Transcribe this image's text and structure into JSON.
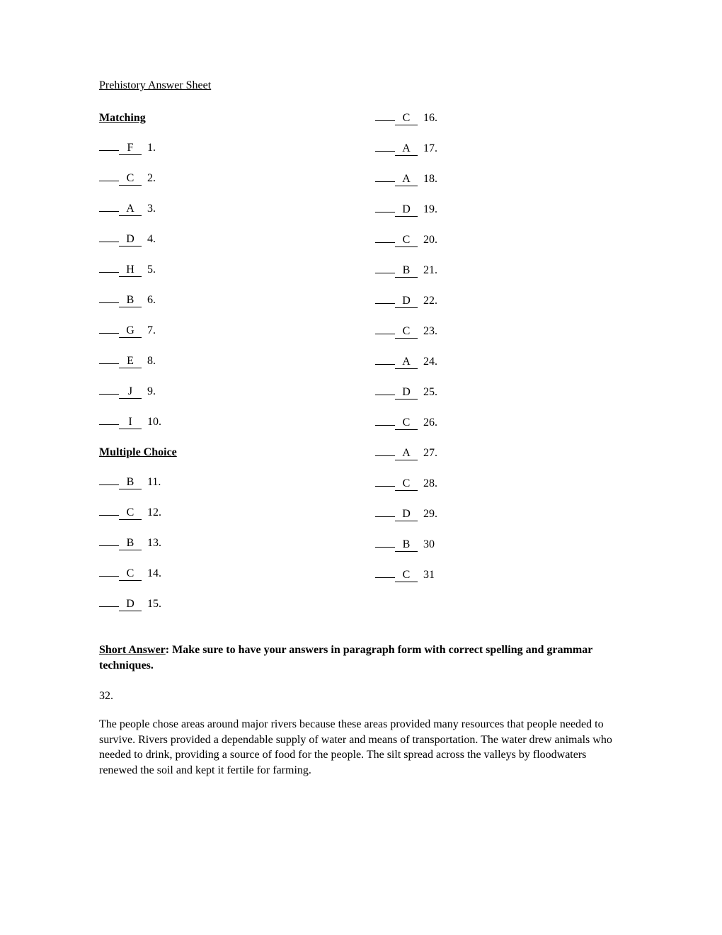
{
  "title": "Prehistory Answer Sheet",
  "sections": {
    "matching": {
      "heading": "Matching",
      "items": [
        {
          "letter": "F",
          "num": "1."
        },
        {
          "letter": "C",
          "num": "2."
        },
        {
          "letter": "A",
          "num": "3."
        },
        {
          "letter": "D",
          "num": "4."
        },
        {
          "letter": "H",
          "num": "5."
        },
        {
          "letter": "B",
          "num": "6."
        },
        {
          "letter": "G",
          "num": "7."
        },
        {
          "letter": "E",
          "num": "8."
        },
        {
          "letter": "J",
          "num": "9."
        },
        {
          "letter": "I",
          "num": "10."
        }
      ]
    },
    "multiple_choice": {
      "heading": "Multiple Choice",
      "left_items": [
        {
          "letter": "B",
          "num": "11."
        },
        {
          "letter": "C",
          "num": "12."
        },
        {
          "letter": "B",
          "num": "13."
        },
        {
          "letter": "C",
          "num": "14."
        },
        {
          "letter": "D",
          "num": "15."
        }
      ],
      "right_items": [
        {
          "letter": "C",
          "num": "16."
        },
        {
          "letter": "A",
          "num": "17."
        },
        {
          "letter": "A",
          "num": "18."
        },
        {
          "letter": "D",
          "num": "19."
        },
        {
          "letter": "C",
          "num": "20."
        },
        {
          "letter": "B",
          "num": "21."
        },
        {
          "letter": "D",
          "num": "22."
        },
        {
          "letter": "C",
          "num": "23."
        },
        {
          "letter": "A",
          "num": "24."
        },
        {
          "letter": "D",
          "num": "25."
        },
        {
          "letter": "C",
          "num": "26."
        },
        {
          "letter": "A",
          "num": "27."
        },
        {
          "letter": "C",
          "num": "28."
        },
        {
          "letter": "D",
          "num": "29."
        },
        {
          "letter": "B",
          "num": "30"
        },
        {
          "letter": "C",
          "num": "31"
        }
      ]
    },
    "short_answer": {
      "label": "Short Answer",
      "instructions": ":  Make sure to have your answers in paragraph form with correct spelling and grammar techniques.",
      "question_number": "32.",
      "paragraph": "The people chose areas around major rivers because these areas provided many resources that people needed to survive. Rivers provided a dependable supply of water and means of transportation. The water drew animals who needed to drink, providing a source of food for the people. The silt spread across the valleys by floodwaters renewed the soil and kept it fertile for farming."
    }
  }
}
